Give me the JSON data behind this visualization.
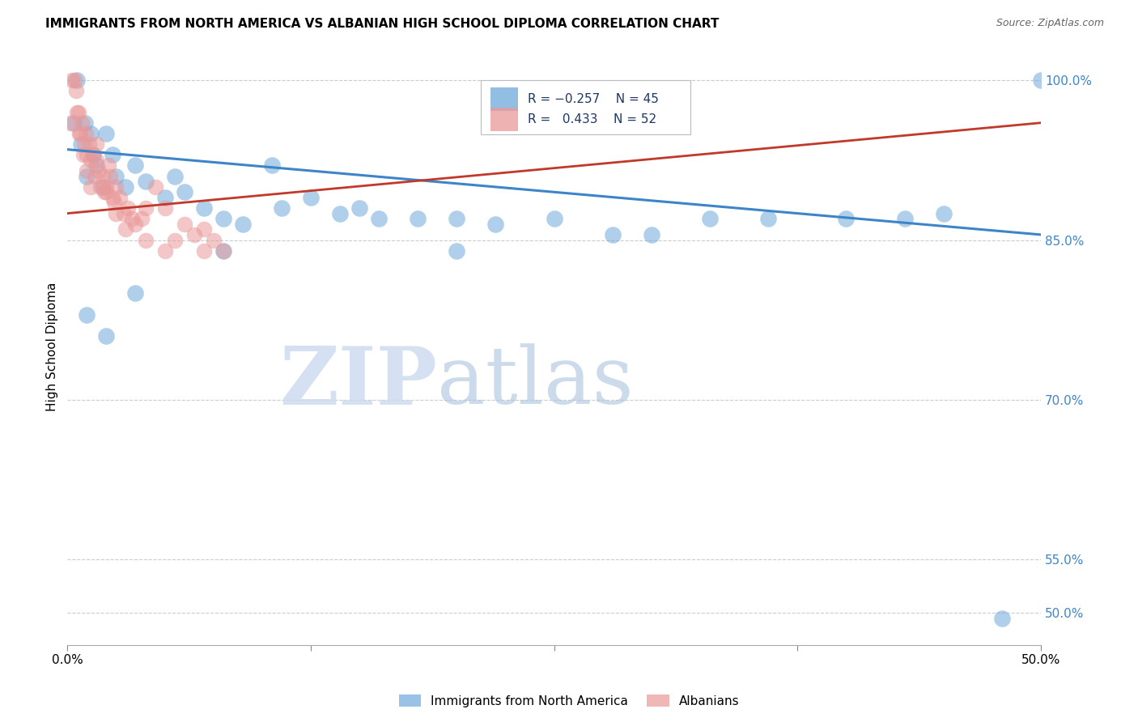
{
  "title": "IMMIGRANTS FROM NORTH AMERICA VS ALBANIAN HIGH SCHOOL DIPLOMA CORRELATION CHART",
  "source": "Source: ZipAtlas.com",
  "ylabel": "High School Diploma",
  "xlim": [
    0.0,
    50.0
  ],
  "ylim": [
    47.0,
    103.0
  ],
  "right_axis_ticks": [
    50.0,
    55.0,
    70.0,
    85.0,
    100.0
  ],
  "right_axis_labels": [
    "50.0%",
    "55.0%",
    "70.0%",
    "85.0%",
    "100.0%"
  ],
  "grid_y_positions": [
    100.0,
    85.0,
    70.0,
    55.0,
    50.0
  ],
  "blue_label": "Immigrants from North America",
  "pink_label": "Albanians",
  "blue_R": -0.257,
  "blue_N": 45,
  "pink_R": 0.433,
  "pink_N": 52,
  "blue_color": "#6fa8dc",
  "pink_color": "#ea9999",
  "blue_line_color": "#3d85c8",
  "pink_line_color": "#c0392b",
  "watermark_zip": "ZIP",
  "watermark_atlas": "atlas",
  "blue_trend_x0": 0.0,
  "blue_trend_y0": 93.5,
  "blue_trend_x1": 50.0,
  "blue_trend_y1": 85.5,
  "pink_trend_x0": 0.0,
  "pink_trend_y0": 87.5,
  "pink_trend_x1": 50.0,
  "pink_trend_y1": 96.0,
  "blue_x": [
    0.3,
    0.5,
    0.7,
    0.9,
    1.0,
    1.2,
    1.3,
    1.5,
    1.8,
    2.0,
    2.3,
    2.5,
    3.0,
    3.5,
    4.0,
    5.0,
    5.5,
    6.0,
    7.0,
    8.0,
    9.0,
    10.5,
    11.0,
    12.5,
    14.0,
    15.0,
    16.0,
    18.0,
    20.0,
    22.0,
    25.0,
    28.0,
    30.0,
    33.0,
    36.0,
    40.0,
    43.0,
    45.0,
    48.0,
    50.0,
    1.0,
    2.0,
    3.5,
    8.0,
    20.0
  ],
  "blue_y": [
    96.0,
    100.0,
    94.0,
    96.0,
    91.0,
    95.0,
    93.0,
    92.0,
    90.0,
    95.0,
    93.0,
    91.0,
    90.0,
    92.0,
    90.5,
    89.0,
    91.0,
    89.5,
    88.0,
    87.0,
    86.5,
    92.0,
    88.0,
    89.0,
    87.5,
    88.0,
    87.0,
    87.0,
    87.0,
    86.5,
    87.0,
    85.5,
    85.5,
    87.0,
    87.0,
    87.0,
    87.0,
    87.5,
    49.5,
    100.0,
    78.0,
    76.0,
    80.0,
    84.0,
    84.0
  ],
  "pink_x": [
    0.15,
    0.25,
    0.35,
    0.45,
    0.55,
    0.65,
    0.75,
    0.85,
    0.95,
    1.0,
    1.1,
    1.2,
    1.3,
    1.4,
    1.5,
    1.6,
    1.7,
    1.8,
    1.9,
    2.0,
    2.1,
    2.2,
    2.3,
    2.4,
    2.5,
    2.7,
    2.9,
    3.1,
    3.3,
    3.5,
    3.8,
    4.0,
    4.5,
    5.0,
    5.5,
    6.0,
    6.5,
    7.0,
    7.5,
    8.0,
    0.5,
    0.6,
    0.8,
    1.0,
    1.2,
    1.5,
    2.0,
    2.5,
    3.0,
    4.0,
    5.0,
    7.0
  ],
  "pink_y": [
    96.0,
    100.0,
    100.0,
    99.0,
    97.0,
    95.0,
    96.0,
    94.0,
    95.0,
    93.0,
    94.0,
    92.5,
    93.0,
    91.0,
    94.0,
    91.5,
    90.0,
    91.0,
    89.5,
    90.0,
    92.0,
    91.0,
    89.0,
    88.5,
    90.0,
    89.0,
    87.5,
    88.0,
    87.0,
    86.5,
    87.0,
    88.0,
    90.0,
    88.0,
    85.0,
    86.5,
    85.5,
    86.0,
    85.0,
    84.0,
    97.0,
    95.0,
    93.0,
    91.5,
    90.0,
    92.5,
    89.5,
    87.5,
    86.0,
    85.0,
    84.0,
    84.0
  ]
}
